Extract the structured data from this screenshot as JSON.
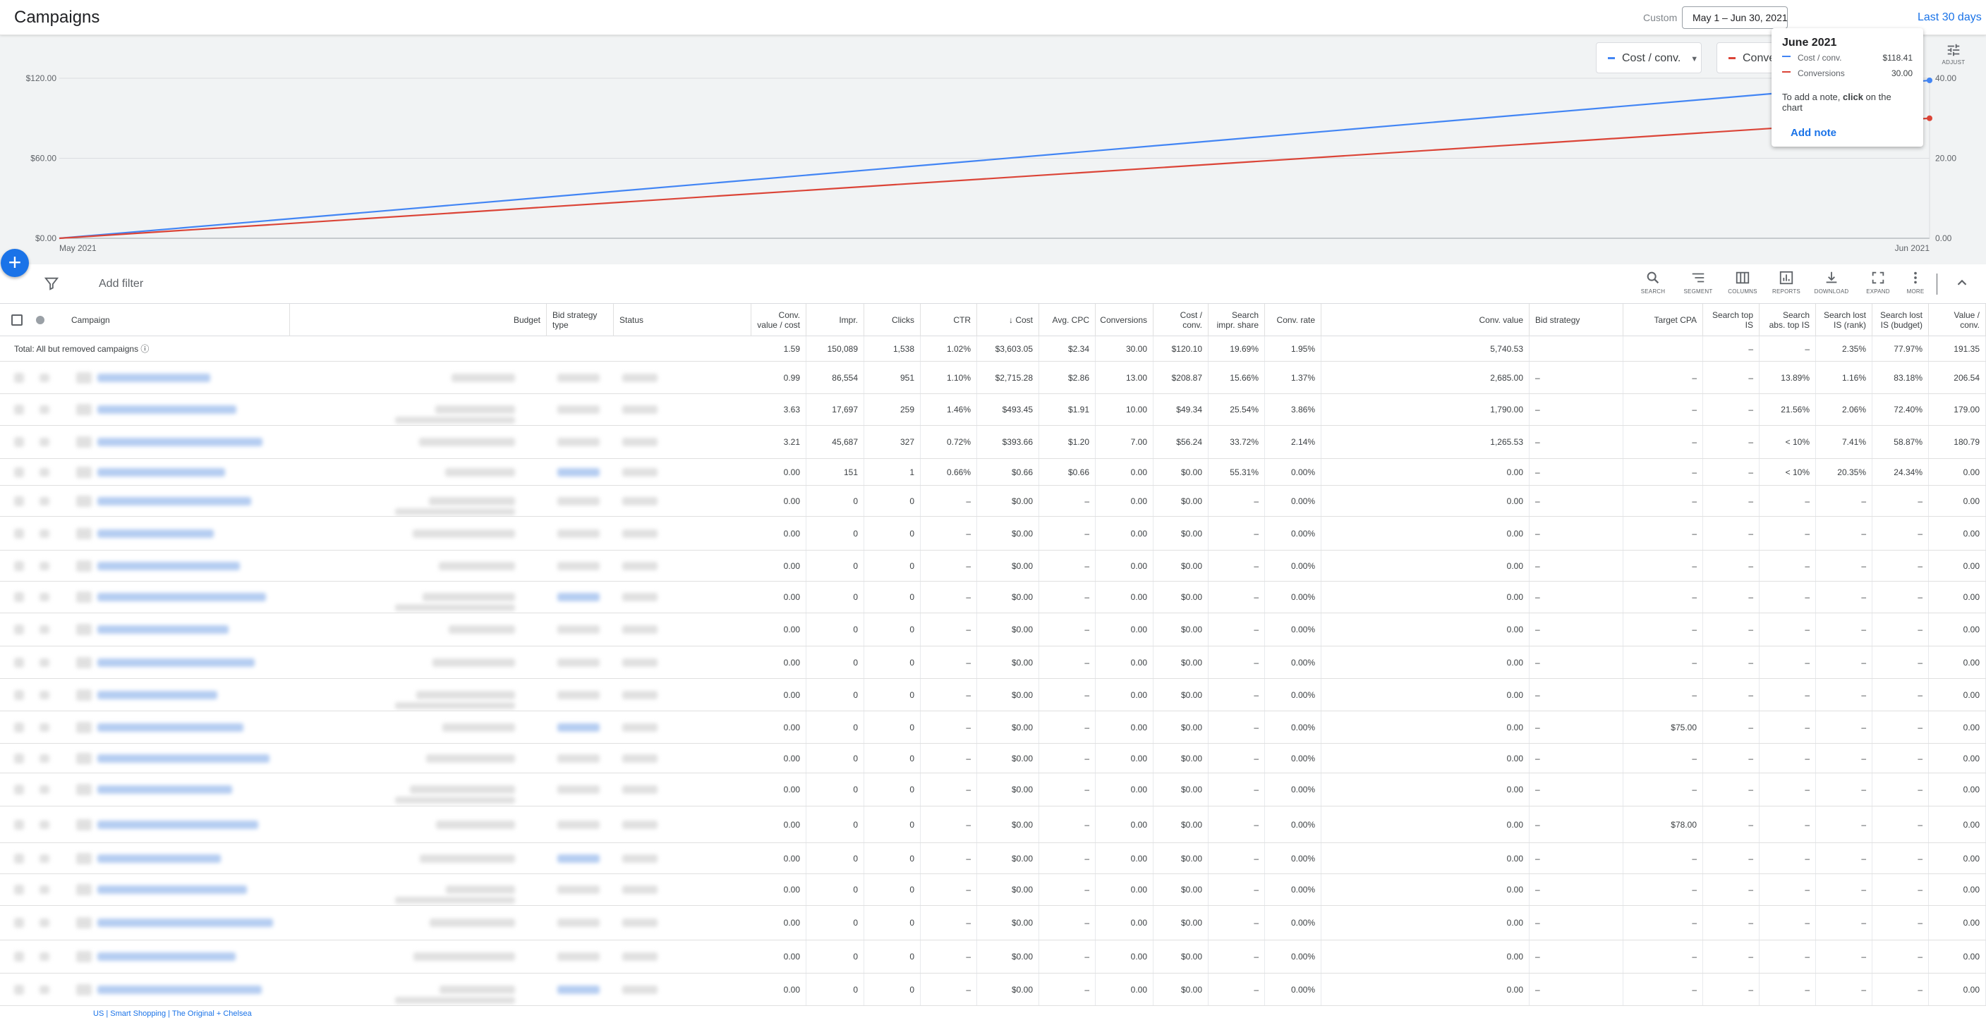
{
  "header": {
    "title": "Campaigns",
    "custom_label": "Custom",
    "date_range": "May 1 – Jun 30, 2021",
    "last30": "Last 30 days"
  },
  "chart": {
    "metric1_label": "Cost / conv.",
    "metric2_label": "Conversions",
    "adjust_label": "ADJUST",
    "colors": {
      "cost_conv": "#4285f4",
      "conversions": "#db4437"
    },
    "chart_data": {
      "type": "line",
      "x": [
        "May 2021",
        "Jun 2021"
      ],
      "xlabel_start": "May 2021",
      "xlabel_end": "Jun 2021",
      "y_left_ticks": [
        "$120.00",
        "$60.00",
        "$0.00"
      ],
      "y_right_ticks": [
        "40.00",
        "20.00",
        "0.00"
      ],
      "series": [
        {
          "name": "Cost / conv.",
          "axis": "left",
          "values": [
            0,
            118.41
          ],
          "color": "#4285f4"
        },
        {
          "name": "Conversions",
          "axis": "right",
          "values": [
            0,
            30
          ],
          "color": "#db4437"
        }
      ],
      "ylim_left": [
        0,
        120
      ],
      "ylim_right": [
        0,
        40
      ]
    },
    "tooltip": {
      "title": "June 2021",
      "row1_label": "Cost / conv.",
      "row1_value": "$118.41",
      "row2_label": "Conversions",
      "row2_value": "30.00",
      "note_prefix": "To add a note, ",
      "note_bold": "click",
      "note_suffix": " on the chart",
      "add_note": "Add note"
    }
  },
  "toolbar": {
    "add_filter": "Add filter",
    "tools": [
      "SEARCH",
      "SEGMENT",
      "COLUMNS",
      "REPORTS",
      "DOWNLOAD",
      "EXPAND",
      "MORE"
    ]
  },
  "table": {
    "headers": {
      "campaign": "Campaign",
      "budget": "Budget",
      "bid_strategy_type": "Bid strategy type",
      "status": "Status",
      "conv_value_cost": "Conv. value / cost",
      "impr": "Impr.",
      "clicks": "Clicks",
      "ctr": "CTR",
      "cost": "Cost",
      "avg_cpc": "Avg. CPC",
      "conversions": "Conversions",
      "cost_conv": "Cost / conv.",
      "search_impr_share": "Search impr. share",
      "conv_rate": "Conv. rate",
      "conv_value": "Conv. value",
      "bid_strategy": "Bid strategy",
      "target_cpa": "Target CPA",
      "search_top_is": "Search top IS",
      "search_abs_top_is": "Search abs. top IS",
      "search_lost_is_rank": "Search lost IS (rank)",
      "search_lost_is_budget": "Search lost IS (budget)",
      "value_conv": "Value / conv."
    },
    "total": {
      "label": "Total: All but removed campaigns",
      "values": [
        "1.59",
        "150,089",
        "1,538",
        "1.02%",
        "$3,603.05",
        "$2.34",
        "30.00",
        "$120.10",
        "19.69%",
        "1.95%",
        "5,740.53",
        "",
        "",
        "–",
        "–",
        "2.35%",
        "77.97%",
        "191.35"
      ]
    },
    "rows": [
      {
        "h": 46,
        "v": [
          "0.99",
          "86,554",
          "951",
          "1.10%",
          "$2,715.28",
          "$2.86",
          "13.00",
          "$208.87",
          "15.66%",
          "1.37%",
          "2,685.00",
          "–",
          "–",
          "–",
          "13.89%",
          "1.16%",
          "83.18%",
          "206.54"
        ]
      },
      {
        "h": 46,
        "v": [
          "3.63",
          "17,697",
          "259",
          "1.46%",
          "$493.45",
          "$1.91",
          "10.00",
          "$49.34",
          "25.54%",
          "3.86%",
          "1,790.00",
          "–",
          "–",
          "–",
          "21.56%",
          "2.06%",
          "72.40%",
          "179.00"
        ]
      },
      {
        "h": 46,
        "v": [
          "3.21",
          "45,687",
          "327",
          "0.72%",
          "$393.66",
          "$1.20",
          "7.00",
          "$56.24",
          "33.72%",
          "2.14%",
          "1,265.53",
          "–",
          "–",
          "–",
          "< 10%",
          "7.41%",
          "58.87%",
          "180.79"
        ]
      },
      {
        "h": 46,
        "v": [
          "0.00",
          "151",
          "1",
          "0.66%",
          "$0.66",
          "$0.66",
          "0.00",
          "$0.00",
          "55.31%",
          "0.00%",
          "0.00",
          "–",
          "–",
          "–",
          "< 10%",
          "20.35%",
          "24.34%",
          "0.00"
        ]
      },
      {
        "h": 46,
        "v": [
          "0.00",
          "0",
          "0",
          "–",
          "$0.00",
          "–",
          "0.00",
          "$0.00",
          "–",
          "0.00%",
          "0.00",
          "–",
          "–",
          "–",
          "–",
          "–",
          "–",
          "0.00"
        ]
      },
      {
        "h": 46,
        "v": [
          "0.00",
          "0",
          "0",
          "–",
          "$0.00",
          "–",
          "0.00",
          "$0.00",
          "–",
          "0.00%",
          "0.00",
          "–",
          "–",
          "–",
          "–",
          "–",
          "–",
          "0.00"
        ]
      },
      {
        "h": 46,
        "v": [
          "0.00",
          "0",
          "0",
          "–",
          "$0.00",
          "–",
          "0.00",
          "$0.00",
          "–",
          "0.00%",
          "0.00",
          "–",
          "–",
          "–",
          "–",
          "–",
          "–",
          "0.00"
        ]
      },
      {
        "h": 46,
        "v": [
          "0.00",
          "0",
          "0",
          "–",
          "$0.00",
          "–",
          "0.00",
          "$0.00",
          "–",
          "0.00%",
          "0.00",
          "–",
          "–",
          "–",
          "–",
          "–",
          "–",
          "0.00"
        ]
      },
      {
        "h": 46,
        "v": [
          "0.00",
          "0",
          "0",
          "–",
          "$0.00",
          "–",
          "0.00",
          "$0.00",
          "–",
          "0.00%",
          "0.00",
          "–",
          "–",
          "–",
          "–",
          "–",
          "–",
          "0.00"
        ]
      },
      {
        "h": 46,
        "v": [
          "0.00",
          "0",
          "0",
          "–",
          "$0.00",
          "–",
          "0.00",
          "$0.00",
          "–",
          "0.00%",
          "0.00",
          "–",
          "–",
          "–",
          "–",
          "–",
          "–",
          "0.00"
        ]
      },
      {
        "h": 46,
        "v": [
          "0.00",
          "0",
          "0",
          "–",
          "$0.00",
          "–",
          "0.00",
          "$0.00",
          "–",
          "0.00%",
          "0.00",
          "–",
          "–",
          "–",
          "–",
          "–",
          "–",
          "0.00"
        ]
      },
      {
        "h": 46,
        "v": [
          "0.00",
          "0",
          "0",
          "–",
          "$0.00",
          "–",
          "0.00",
          "$0.00",
          "–",
          "0.00%",
          "0.00",
          "–",
          "$75.00",
          "–",
          "–",
          "–",
          "–",
          "0.00"
        ]
      },
      {
        "h": 46,
        "v": [
          "0.00",
          "0",
          "0",
          "–",
          "$0.00",
          "–",
          "0.00",
          "$0.00",
          "–",
          "0.00%",
          "0.00",
          "–",
          "–",
          "–",
          "–",
          "–",
          "–",
          "0.00"
        ]
      },
      {
        "h": 46,
        "v": [
          "0.00",
          "0",
          "0",
          "–",
          "$0.00",
          "–",
          "0.00",
          "$0.00",
          "–",
          "0.00%",
          "0.00",
          "–",
          "–",
          "–",
          "–",
          "–",
          "–",
          "0.00"
        ]
      },
      {
        "h": 46,
        "v": [
          "0.00",
          "0",
          "0",
          "–",
          "$0.00",
          "–",
          "0.00",
          "$0.00",
          "–",
          "0.00%",
          "0.00",
          "–",
          "$78.00",
          "–",
          "–",
          "–",
          "–",
          "0.00"
        ]
      },
      {
        "h": 46,
        "v": [
          "0.00",
          "0",
          "0",
          "–",
          "$0.00",
          "–",
          "0.00",
          "$0.00",
          "–",
          "0.00%",
          "0.00",
          "–",
          "–",
          "–",
          "–",
          "–",
          "–",
          "0.00"
        ]
      },
      {
        "h": 46,
        "v": [
          "0.00",
          "0",
          "0",
          "–",
          "$0.00",
          "–",
          "0.00",
          "$0.00",
          "–",
          "0.00%",
          "0.00",
          "–",
          "–",
          "–",
          "–",
          "–",
          "–",
          "0.00"
        ]
      },
      {
        "h": 46,
        "v": [
          "0.00",
          "0",
          "0",
          "–",
          "$0.00",
          "–",
          "0.00",
          "$0.00",
          "–",
          "0.00%",
          "0.00",
          "–",
          "–",
          "–",
          "–",
          "–",
          "–",
          "0.00"
        ]
      },
      {
        "h": 46,
        "v": [
          "0.00",
          "0",
          "0",
          "–",
          "$0.00",
          "–",
          "0.00",
          "$0.00",
          "–",
          "0.00%",
          "0.00",
          "–",
          "–",
          "–",
          "–",
          "–",
          "–",
          "0.00"
        ]
      },
      {
        "h": 46,
        "v": [
          "0.00",
          "0",
          "0",
          "–",
          "$0.00",
          "–",
          "0.00",
          "$0.00",
          "–",
          "0.00%",
          "0.00",
          "–",
          "–",
          "–",
          "–",
          "–",
          "–",
          "0.00"
        ]
      }
    ],
    "last_campaign": "US | Smart Shopping | The Original + Chelsea"
  }
}
